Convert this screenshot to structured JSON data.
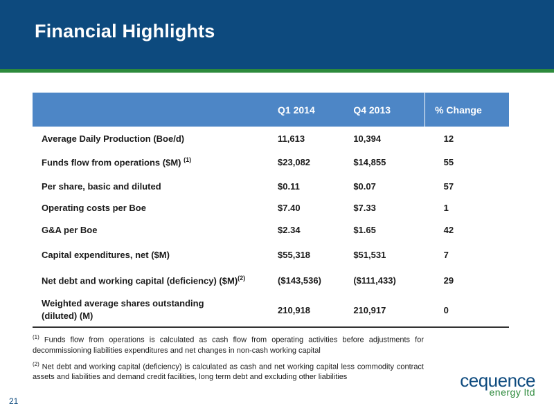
{
  "slide": {
    "title": "Financial Highlights",
    "page_number": "21"
  },
  "table": {
    "headers": [
      "",
      "Q1 2014",
      "Q4 2013",
      "% Change"
    ],
    "rows": [
      {
        "label": "Average Daily Production (Boe/d)",
        "sup": "",
        "q1_2014": "11,613",
        "q4_2013": "10,394",
        "pct_change": "12"
      },
      {
        "label": "Funds flow from operations ($M) ",
        "sup": "(1)",
        "q1_2014": "$23,082",
        "q4_2013": "$14,855",
        "pct_change": "55"
      },
      {
        "label": "Per share, basic and diluted",
        "sup": "",
        "q1_2014": "$0.11",
        "q4_2013": "$0.07",
        "pct_change": "57"
      },
      {
        "label": "Operating costs per Boe",
        "sup": "",
        "q1_2014": "$7.40",
        "q4_2013": "$7.33",
        "pct_change": "1"
      },
      {
        "label": "G&A per Boe",
        "sup": "",
        "q1_2014": "$2.34",
        "q4_2013": "$1.65",
        "pct_change": "42"
      },
      {
        "label": "Capital expenditures, net ($M)",
        "sup": "",
        "q1_2014": "$55,318",
        "q4_2013": "$51,531",
        "pct_change": "7"
      },
      {
        "label": "Net debt and working capital (deficiency) ($M)",
        "sup": "(2)",
        "q1_2014": "($143,536)",
        "q4_2013": "($111,433)",
        "pct_change": "29"
      },
      {
        "label": "Weighted average shares outstanding",
        "label_line2": "(diluted) (M)",
        "sup": "",
        "q1_2014": "210,918",
        "q4_2013": "210,917",
        "pct_change": "0"
      }
    ]
  },
  "footnotes": [
    {
      "marker": "(1)",
      "text": " Funds flow from operations is calculated as cash flow from operating activities before adjustments for decommissioning liabilities expenditures and net changes in non-cash working capital"
    },
    {
      "marker": "(2)",
      "text": " Net debt and working capital (deficiency) is calculated as cash and net working capital less commodity contract assets and liabilities and demand credit facilities, long term debt and excluding other liabilities"
    }
  ],
  "logo": {
    "name": "cequence",
    "tagline": "energy ltd"
  },
  "colors": {
    "header_bg": "#0d4a7e",
    "accent_line": "#2d8a3c",
    "table_header_bg": "#4d86c6"
  }
}
